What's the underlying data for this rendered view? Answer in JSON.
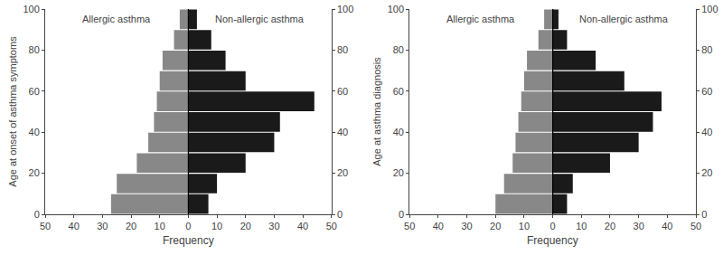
{
  "chart_data": [
    {
      "type": "bar",
      "orientation": "horizontal",
      "xlabel": "Frequency",
      "ylabel": "Age at onset of asthma symptoms",
      "y": [
        0,
        10,
        20,
        30,
        40,
        50,
        60,
        70,
        80,
        90
      ],
      "series": [
        {
          "name": "Allergic asthma",
          "color": "#888888",
          "values": [
            27,
            25,
            18,
            14,
            12,
            11,
            10,
            9,
            5,
            3
          ]
        },
        {
          "name": "Non-allergic asthma",
          "color": "#1a1a1a",
          "values": [
            7,
            10,
            20,
            30,
            32,
            44,
            20,
            13,
            8,
            3
          ]
        }
      ],
      "xlim": [
        0,
        50
      ],
      "xticks": [
        0,
        10,
        20,
        30,
        40,
        50
      ],
      "ylim": [
        0,
        100
      ],
      "yticks": [
        0,
        20,
        40,
        60,
        80,
        100
      ],
      "y2lim": [
        0,
        100
      ],
      "y2ticks": [
        0,
        20,
        40,
        60,
        80,
        100
      ],
      "grid": false
    },
    {
      "type": "bar",
      "orientation": "horizontal",
      "xlabel": "Frequency",
      "ylabel": "Age at asthma diagnosis",
      "y": [
        0,
        10,
        20,
        30,
        40,
        50,
        60,
        70,
        80,
        90
      ],
      "series": [
        {
          "name": "Allergic asthma",
          "color": "#888888",
          "values": [
            20,
            17,
            14,
            13,
            12,
            11,
            10,
            9,
            5,
            3
          ]
        },
        {
          "name": "Non-allergic asthma",
          "color": "#1a1a1a",
          "values": [
            5,
            7,
            20,
            30,
            35,
            38,
            25,
            15,
            5,
            2
          ]
        }
      ],
      "xlim": [
        0,
        50
      ],
      "xticks": [
        0,
        10,
        20,
        30,
        40,
        50
      ],
      "ylim": [
        0,
        100
      ],
      "yticks": [
        0,
        20,
        40,
        60,
        80,
        100
      ],
      "y2lim": [
        0,
        100
      ],
      "y2ticks": [
        0,
        20,
        40,
        60,
        80,
        100
      ],
      "grid": false
    }
  ]
}
